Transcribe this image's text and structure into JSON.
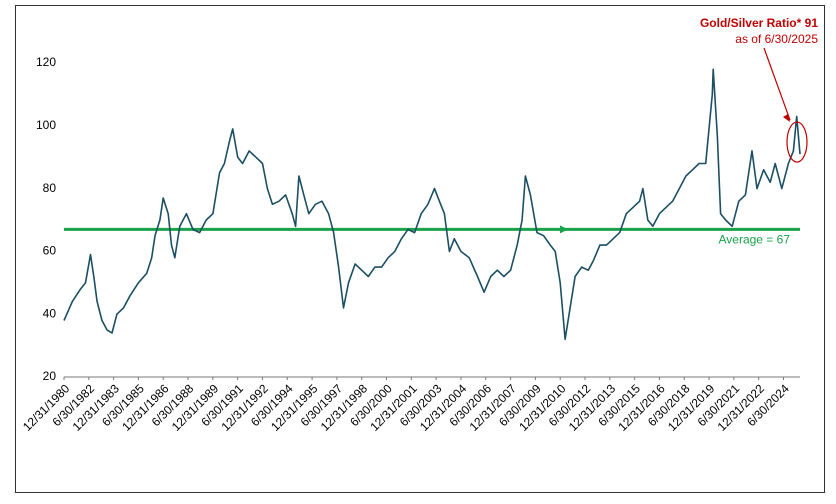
{
  "chart_data": {
    "type": "line",
    "x": [
      1981.0,
      1981.5,
      1982.0,
      1982.3,
      1982.6,
      1982.8,
      1983.0,
      1983.3,
      1983.6,
      1983.9,
      1984.2,
      1984.6,
      1985.0,
      1985.5,
      1986.0,
      1986.3,
      1986.5,
      1986.8,
      1987.0,
      1987.3,
      1987.5,
      1987.7,
      1988.0,
      1988.4,
      1988.8,
      1989.2,
      1989.6,
      1990.0,
      1990.4,
      1990.7,
      1991.0,
      1991.2,
      1991.5,
      1991.8,
      1992.2,
      1992.6,
      1993.0,
      1993.3,
      1993.6,
      1994.0,
      1994.4,
      1994.8,
      1995.0,
      1995.2,
      1995.5,
      1995.8,
      1996.2,
      1996.6,
      1997.0,
      1997.3,
      1997.6,
      1997.9,
      1998.2,
      1998.6,
      1999.0,
      1999.4,
      1999.8,
      2000.2,
      2000.6,
      2001.0,
      2001.4,
      2001.8,
      2002.2,
      2002.6,
      2003.0,
      2003.4,
      2003.7,
      2004.0,
      2004.3,
      2004.6,
      2005.0,
      2005.5,
      2006.0,
      2006.4,
      2006.8,
      2007.2,
      2007.6,
      2008.0,
      2008.4,
      2008.7,
      2008.9,
      2009.2,
      2009.6,
      2010.0,
      2010.4,
      2010.7,
      2011.0,
      2011.3,
      2011.6,
      2011.9,
      2012.3,
      2012.7,
      2013.0,
      2013.4,
      2013.8,
      2014.2,
      2014.6,
      2015.0,
      2015.4,
      2015.8,
      2016.0,
      2016.3,
      2016.6,
      2017.0,
      2017.4,
      2017.8,
      2018.2,
      2018.6,
      2019.0,
      2019.4,
      2019.8,
      2020.2,
      2020.25,
      2020.5,
      2020.7,
      2021.0,
      2021.4,
      2021.8,
      2022.2,
      2022.6,
      2022.9,
      2023.3,
      2023.7,
      2024.0,
      2024.4,
      2024.8,
      2025.1,
      2025.3,
      2025.5
    ],
    "series": [
      {
        "color": "#1b4f63",
        "values": [
          38,
          44,
          48,
          50,
          59,
          52,
          44,
          38,
          35,
          34,
          40,
          42,
          46,
          50,
          53,
          58,
          65,
          70,
          77,
          72,
          62,
          58,
          68,
          72,
          67,
          66,
          70,
          72,
          85,
          88,
          95,
          99,
          90,
          88,
          92,
          90,
          88,
          80,
          75,
          76,
          78,
          72,
          68,
          84,
          78,
          72,
          75,
          76,
          72,
          66,
          55,
          42,
          50,
          56,
          54,
          52,
          55,
          55,
          58,
          60,
          64,
          67,
          66,
          72,
          75,
          80,
          76,
          72,
          60,
          64,
          60,
          58,
          52,
          47,
          52,
          54,
          52,
          54,
          62,
          70,
          84,
          78,
          66,
          65,
          62,
          60,
          50,
          32,
          42,
          52,
          55,
          54,
          57,
          62,
          62,
          64,
          66,
          72,
          74,
          76,
          80,
          70,
          68,
          72,
          74,
          76,
          80,
          84,
          86,
          88,
          88,
          110,
          118,
          97,
          72,
          70,
          68,
          76,
          78,
          92,
          80,
          86,
          82,
          88,
          80,
          88,
          92,
          103,
          91
        ]
      }
    ],
    "xlim": [
      1981.0,
      2025.5
    ],
    "xticks": [
      {
        "value": 1981.0,
        "label": "12/31/1980"
      },
      {
        "value": 1982.5,
        "label": "6/30/1982"
      },
      {
        "value": 1984.0,
        "label": "12/31/1983"
      },
      {
        "value": 1985.5,
        "label": "6/30/1985"
      },
      {
        "value": 1987.0,
        "label": "12/31/1986"
      },
      {
        "value": 1988.5,
        "label": "6/30/1988"
      },
      {
        "value": 1990.0,
        "label": "12/31/1989"
      },
      {
        "value": 1991.5,
        "label": "6/30/1991"
      },
      {
        "value": 1993.0,
        "label": "12/31/1992"
      },
      {
        "value": 1994.5,
        "label": "6/30/1994"
      },
      {
        "value": 1996.0,
        "label": "12/31/1995"
      },
      {
        "value": 1997.5,
        "label": "6/30/1997"
      },
      {
        "value": 1999.0,
        "label": "12/31/1998"
      },
      {
        "value": 2000.5,
        "label": "6/30/2000"
      },
      {
        "value": 2002.0,
        "label": "12/31/2001"
      },
      {
        "value": 2003.5,
        "label": "6/30/2003"
      },
      {
        "value": 2005.0,
        "label": "12/31/2004"
      },
      {
        "value": 2006.5,
        "label": "6/30/2006"
      },
      {
        "value": 2008.0,
        "label": "12/31/2007"
      },
      {
        "value": 2009.5,
        "label": "6/30/2009"
      },
      {
        "value": 2011.0,
        "label": "12/31/2010"
      },
      {
        "value": 2012.5,
        "label": "6/30/2012"
      },
      {
        "value": 2014.0,
        "label": "12/31/2013"
      },
      {
        "value": 2015.5,
        "label": "6/30/2015"
      },
      {
        "value": 2017.0,
        "label": "12/31/2016"
      },
      {
        "value": 2018.5,
        "label": "6/30/2018"
      },
      {
        "value": 2020.0,
        "label": "12/31/2019"
      },
      {
        "value": 2021.5,
        "label": "6/30/2021"
      },
      {
        "value": 2023.0,
        "label": "12/31/2022"
      },
      {
        "value": 2024.5,
        "label": "6/30/2024"
      }
    ],
    "ylim": [
      20,
      120
    ],
    "yticks": [
      20,
      40,
      60,
      80,
      100,
      120
    ],
    "average": 67,
    "average_color": "#1aa34a",
    "average_label": "Average = 67",
    "annotation": "Gold/Silver Ratio* 91",
    "annotation_date": "as of 6/30/2025",
    "annotation_color": "#c00000"
  }
}
